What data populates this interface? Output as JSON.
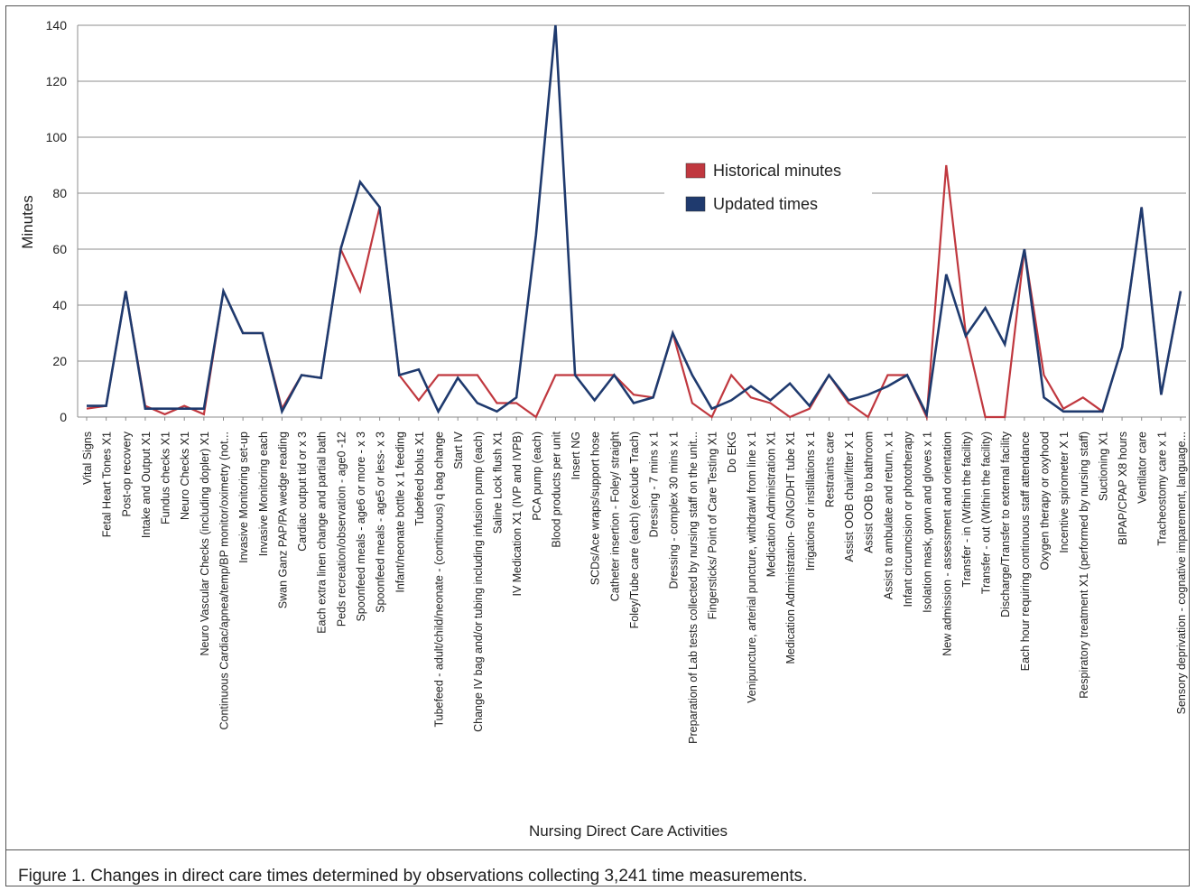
{
  "caption": "Figure 1. Changes in direct care times determined by observations collecting 3,241 time measurements.",
  "chart_data": {
    "type": "line",
    "title": "",
    "xlabel": "Nursing Direct Care Activities",
    "ylabel": "Minutes",
    "ylim": [
      0,
      140
    ],
    "yticks": [
      0,
      20,
      40,
      60,
      80,
      100,
      120,
      140
    ],
    "grid": true,
    "legend_position": "center-right",
    "categories": [
      "Vital Signs",
      "Fetal Heart Tones X1",
      "Post-op recovery",
      "Intake and Output X1",
      "Fundus checks X1",
      "Neuro Checks X1",
      "Neuro Vascular Checks (including dopler) X1",
      "Continuous Cardiac/apnea/temp/BP monitor/oximetry (not...",
      "Invasive Monitoring set-up",
      "Invasive Monitoring each",
      "Swan Ganz PAP/PA wedge reading",
      "Cardiac output tid or x 3",
      "Each extra linen change and partial bath",
      "Peds recreation/observation - age0 -12",
      "Spoonfeed meals - age6 or more - x 3",
      "Spoonfeed meals - age5 or less- x 3",
      "Infant/neonate bottle x 1 feeding",
      "Tubefeed bolus X1",
      "Tubefeed - adult/child/neonate - (continuous) q bag change",
      "Start IV",
      "Change IV bag and/or tubing including infusion pump (each)",
      "Saline Lock flush X1",
      "IV Medication X1 (IVP and IVPB)",
      "PCA pump (each)",
      "Blood products per unit",
      "Insert NG",
      "SCDs/Ace wraps/support hose",
      "Catheter insertion - Foley/ straight",
      "Foley/Tube care (each) (exclude Trach)",
      "Dressing - 7 mins x 1",
      "Dressing - complex 30 mins x 1",
      "Preparation of Lab tests collected by nursing staff on the unit...",
      "Fingersticks/ Point of Care Testing X1",
      "Do EKG",
      "Venipuncture, arterial puncture, withdrawl from line x 1",
      "Medication Administration X1",
      "Medication Administration- G/NG/DHT tube X1",
      "Irrigations or instillations x 1",
      "Restraints care",
      "Assist OOB chair/litter X 1",
      "Assist OOB to bathroom",
      "Assist to ambulate and return, x 1",
      "Infant circumcision or phototherapy",
      "Isolation mask, gown and gloves x 1",
      "New admission - assessment and orientation",
      "Transfer - in (Within the facility)",
      "Transfer - out (Within the facility)",
      "Discharge/Transfer to external facility",
      "Each hour requiring continuous staff attendance",
      "Oxygen therapy or oxyhood",
      "Incentive spirometer X 1",
      "Respiratory treatment X1 (performed by nursing staff)",
      "Suctioning X1",
      "BIPAP/CPAP X8 hours",
      "Ventilator care",
      "Tracheostomy care x 1",
      "Sensory deprivation - cognative imparement, language..."
    ],
    "series": [
      {
        "name": "Historical minutes",
        "color": "#c0383f",
        "values": [
          3,
          4,
          45,
          4,
          1,
          4,
          1,
          45,
          30,
          30,
          3,
          15,
          14,
          60,
          45,
          75,
          15,
          6,
          15,
          15,
          15,
          5,
          5,
          0,
          15,
          15,
          15,
          15,
          8,
          7,
          30,
          5,
          0,
          15,
          7,
          5,
          0,
          3,
          15,
          5,
          0,
          15,
          15,
          0,
          90,
          30,
          0,
          0,
          60,
          15,
          3,
          7,
          2,
          25,
          75,
          8,
          45
        ]
      },
      {
        "name": "Updated times",
        "color": "#1f3a6e",
        "values": [
          4,
          4,
          45,
          3,
          3,
          3,
          3,
          45,
          30,
          30,
          2,
          15,
          14,
          60,
          84,
          75,
          15,
          17,
          2,
          14,
          5,
          2,
          7,
          65,
          140,
          15,
          6,
          15,
          5,
          7,
          30,
          15,
          3,
          6,
          11,
          6,
          12,
          4,
          15,
          6,
          8,
          11,
          15,
          1,
          51,
          29,
          39,
          26,
          60,
          7,
          2,
          2,
          2,
          25,
          75,
          8,
          45
        ]
      }
    ]
  }
}
